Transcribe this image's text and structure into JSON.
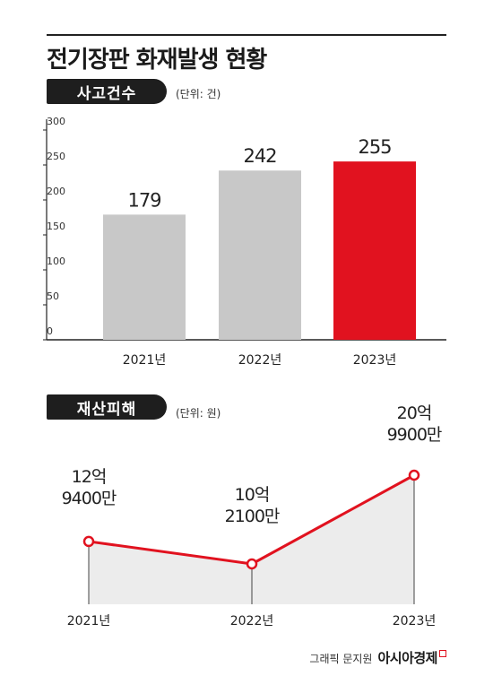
{
  "title": "전기장판 화재발생 현황",
  "colors": {
    "accent": "#e1121f",
    "bar": "#c8c8c8",
    "area": "#ececec",
    "pill": "#1e1e1e"
  },
  "sections": {
    "accidents": {
      "label": "사고건수",
      "unit": "(단위: 건)"
    },
    "damage": {
      "label": "재산피해",
      "unit": "(단위: 원)"
    }
  },
  "chart_data": [
    {
      "type": "bar",
      "categories": [
        "2021년",
        "2022년",
        "2023년"
      ],
      "values": [
        179,
        242,
        255
      ],
      "value_labels": [
        "179",
        "242",
        "255"
      ],
      "ylim": [
        0,
        300
      ],
      "yticks": [
        "0",
        "50",
        "100",
        "150",
        "200",
        "250",
        "300"
      ],
      "highlight_index": 2,
      "grid": false
    },
    {
      "type": "line",
      "categories": [
        "2021년",
        "2022년",
        "2023년"
      ],
      "values": [
        129400,
        102100,
        209900
      ],
      "value_labels": [
        [
          "12억",
          "9400만"
        ],
        [
          "10억",
          "2100만"
        ],
        [
          "20억",
          "9900만"
        ]
      ],
      "grid": false
    }
  ],
  "credit": {
    "text": "그래픽 문지원",
    "brand": "아시아경제"
  }
}
